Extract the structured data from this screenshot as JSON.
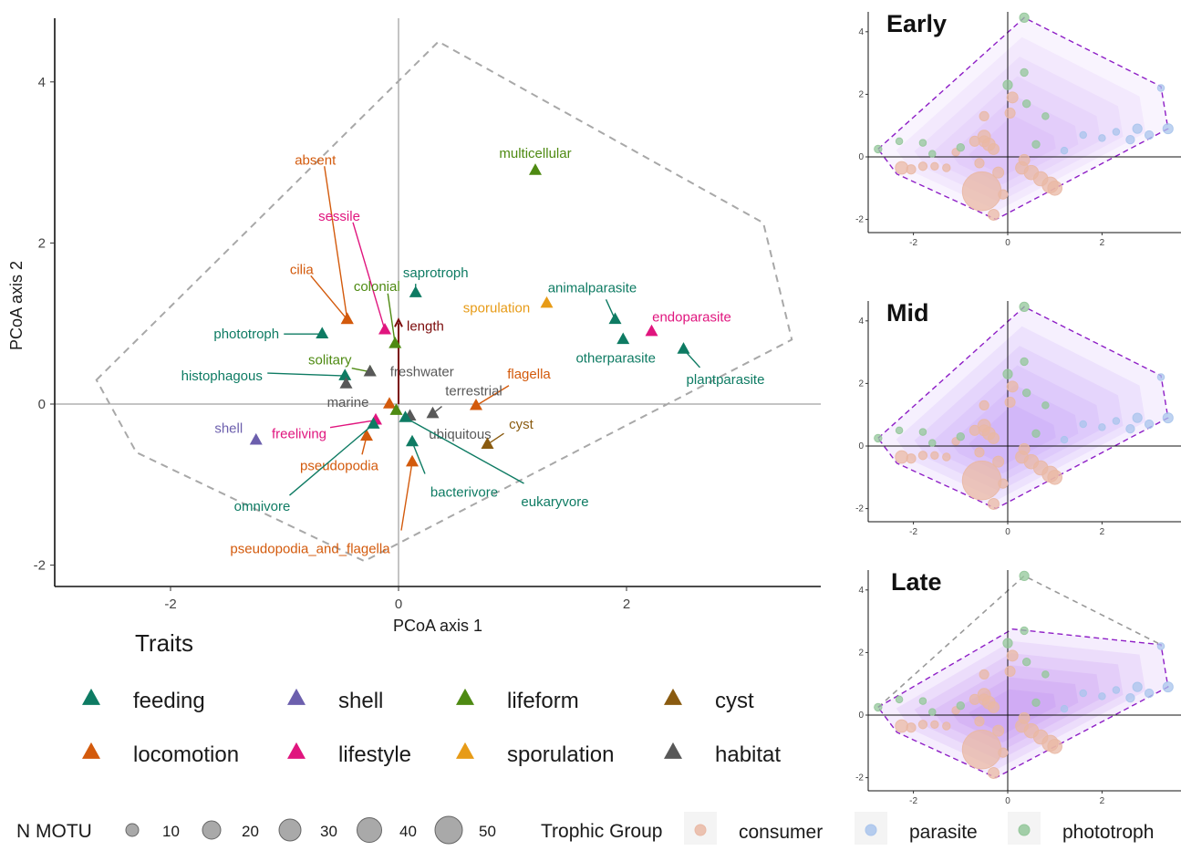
{
  "colors": {
    "feeding": "#0e7b63",
    "shell": "#6c5fad",
    "lifeform": "#4e8a12",
    "cyst": "#8a5b10",
    "locomotion": "#d35a0c",
    "lifestyle": "#e0157e",
    "sporulation": "#e79b17",
    "habitat": "#585858",
    "length": "#7b0a0a",
    "consumer": "#e9b8a4",
    "parasite": "#a9c4ec",
    "phototroph": "#93c79a",
    "hull_main": "#a8a8a8",
    "hull_panel": "#8e1fc6",
    "hull_fill": "#a35ff0"
  },
  "chart_data": [
    {
      "type": "scatter",
      "xlabel": "PCoA axis 1",
      "ylabel": "PCoA axis 2",
      "xlim": [
        -3.0,
        3.9
      ],
      "ylim": [
        -2.3,
        4.8
      ],
      "xticks": [
        -2,
        0,
        2
      ],
      "yticks": [
        -2,
        0,
        2,
        4
      ],
      "grid": false,
      "reference_lines": {
        "x": 0,
        "y": 0
      },
      "hull": [
        [
          -2.65,
          0.3
        ],
        [
          0.35,
          4.5
        ],
        [
          3.2,
          2.25
        ],
        [
          3.45,
          0.8
        ],
        [
          -0.3,
          -1.95
        ],
        [
          -2.3,
          -0.6
        ]
      ],
      "vector": {
        "label": "length",
        "x": 0,
        "y": 1.05
      },
      "points": [
        {
          "label": "multicellular",
          "group": "lifeform",
          "x": 1.2,
          "y": 2.9
        },
        {
          "label": "absent",
          "group": "locomotion",
          "x": -0.45,
          "y": 1.05
        },
        {
          "label": "sessile",
          "group": "lifestyle",
          "x": -0.12,
          "y": 0.92
        },
        {
          "label": "saprotroph",
          "group": "feeding",
          "x": 0.15,
          "y": 1.38
        },
        {
          "label": "cilia",
          "group": "locomotion",
          "x": -0.45,
          "y": 1.05
        },
        {
          "label": "colonial",
          "group": "lifeform",
          "x": -0.03,
          "y": 0.75
        },
        {
          "label": "sporulation",
          "group": "sporulation",
          "x": 1.3,
          "y": 1.25
        },
        {
          "label": "animalparasite",
          "group": "feeding",
          "x": 1.9,
          "y": 1.05
        },
        {
          "label": "endoparasite",
          "group": "lifestyle",
          "x": 2.22,
          "y": 0.9
        },
        {
          "label": "phototroph",
          "group": "feeding",
          "x": -0.67,
          "y": 0.87
        },
        {
          "label": "otherparasite",
          "group": "feeding",
          "x": 1.97,
          "y": 0.8
        },
        {
          "label": "plantparasite",
          "group": "feeding",
          "x": 2.5,
          "y": 0.68
        },
        {
          "label": "solitary",
          "group": "lifeform",
          "x": -0.25,
          "y": 0.4
        },
        {
          "label": "freshwater",
          "group": "habitat",
          "x": -0.25,
          "y": 0.4
        },
        {
          "label": "histophagous",
          "group": "feeding",
          "x": -0.47,
          "y": 0.35
        },
        {
          "label": "marine",
          "group": "habitat",
          "x": -0.46,
          "y": 0.25
        },
        {
          "label": "flagella",
          "group": "locomotion",
          "x": 0.68,
          "y": -0.02
        },
        {
          "label": "terrestrial",
          "group": "habitat",
          "x": 0.3,
          "y": -0.12
        },
        {
          "label": "ubiquitous",
          "group": "habitat",
          "x": 0.1,
          "y": -0.15
        },
        {
          "label": "cyst",
          "group": "cyst",
          "x": 0.78,
          "y": -0.5
        },
        {
          "label": "shell",
          "group": "shell",
          "x": -1.25,
          "y": -0.45
        },
        {
          "label": "freeliving",
          "group": "lifestyle",
          "x": -0.2,
          "y": -0.2
        },
        {
          "label": "pseudopodia",
          "group": "locomotion",
          "x": -0.28,
          "y": -0.4
        },
        {
          "label": "omnivore",
          "group": "feeding",
          "x": -0.22,
          "y": -0.25
        },
        {
          "label": "bacterivore",
          "group": "feeding",
          "x": 0.12,
          "y": -0.47
        },
        {
          "label": "eukaryvore",
          "group": "feeding",
          "x": 0.06,
          "y": -0.17
        },
        {
          "label": "pseudopodia_and_flagella",
          "group": "locomotion",
          "x": 0.12,
          "y": -0.72
        },
        {
          "label": "",
          "group": "locomotion",
          "x": -0.08,
          "y": 0.0
        },
        {
          "label": "",
          "group": "lifeform",
          "x": -0.02,
          "y": -0.08
        }
      ]
    },
    {
      "type": "scatter",
      "title": "Early",
      "xlim": [
        -3.0,
        3.6
      ],
      "ylim": [
        -2.3,
        4.6
      ],
      "xticks": [
        -2,
        0,
        2
      ],
      "yticks": [
        -2,
        0,
        2,
        4
      ],
      "hull": [
        [
          -2.75,
          0.25
        ],
        [
          0.35,
          4.45
        ],
        [
          3.25,
          2.25
        ],
        [
          3.4,
          0.9
        ],
        [
          -0.25,
          -2.0
        ],
        [
          -2.35,
          -0.55
        ]
      ]
    },
    {
      "type": "scatter",
      "title": "Mid",
      "xlim": [
        -3.0,
        3.6
      ],
      "ylim": [
        -2.3,
        4.6
      ],
      "xticks": [
        -2,
        0,
        2
      ],
      "yticks": [
        -2,
        0,
        2,
        4
      ],
      "hull": [
        [
          -2.75,
          0.25
        ],
        [
          0.35,
          4.45
        ],
        [
          3.25,
          2.25
        ],
        [
          3.4,
          0.9
        ],
        [
          -0.25,
          -2.0
        ],
        [
          -2.35,
          -0.55
        ]
      ]
    },
    {
      "type": "scatter",
      "title": "Late",
      "xlim": [
        -3.0,
        3.6
      ],
      "ylim": [
        -2.3,
        4.6
      ],
      "xticks": [
        -2,
        0,
        2
      ],
      "yticks": [
        -2,
        0,
        2,
        4
      ],
      "hull": [
        [
          -2.75,
          0.25
        ],
        [
          0.1,
          2.75
        ],
        [
          3.25,
          2.25
        ],
        [
          3.4,
          0.9
        ],
        [
          -0.25,
          -2.0
        ],
        [
          -2.35,
          -0.55
        ]
      ],
      "reference_hull": [
        [
          -2.75,
          0.25
        ],
        [
          0.35,
          4.45
        ],
        [
          3.25,
          2.25
        ]
      ]
    }
  ],
  "motu_points": [
    [
      -2.75,
      0.25,
      6,
      "phototroph"
    ],
    [
      -2.3,
      0.5,
      5,
      "phototroph"
    ],
    [
      -1.8,
      0.45,
      5,
      "phototroph"
    ],
    [
      -2.25,
      -0.35,
      12,
      "consumer"
    ],
    [
      -2.05,
      -0.4,
      8,
      "consumer"
    ],
    [
      -1.8,
      -0.3,
      7,
      "consumer"
    ],
    [
      -1.55,
      -0.3,
      6,
      "consumer"
    ],
    [
      -1.3,
      -0.35,
      6,
      "consumer"
    ],
    [
      -1.1,
      0.15,
      6,
      "consumer"
    ],
    [
      -1.6,
      0.1,
      5,
      "phototroph"
    ],
    [
      -0.5,
      1.3,
      8,
      "consumer"
    ],
    [
      -0.5,
      0.65,
      12,
      "consumer"
    ],
    [
      -0.5,
      0.5,
      10,
      "consumer"
    ],
    [
      -0.4,
      0.4,
      12,
      "consumer"
    ],
    [
      -0.7,
      0.5,
      9,
      "consumer"
    ],
    [
      -0.3,
      0.25,
      10,
      "consumer"
    ],
    [
      -0.6,
      -0.2,
      8,
      "consumer"
    ],
    [
      -0.2,
      -0.5,
      10,
      "consumer"
    ],
    [
      -0.55,
      -1.1,
      44,
      "consumer"
    ],
    [
      -0.3,
      -1.85,
      10,
      "consumer"
    ],
    [
      -0.1,
      -1.2,
      8,
      "consumer"
    ],
    [
      0.3,
      -0.35,
      12,
      "consumer"
    ],
    [
      0.5,
      -0.5,
      14,
      "consumer"
    ],
    [
      0.7,
      -0.7,
      14,
      "consumer"
    ],
    [
      0.9,
      -0.9,
      16,
      "consumer"
    ],
    [
      1.0,
      -1.0,
      14,
      "consumer"
    ],
    [
      0.35,
      -0.1,
      10,
      "consumer"
    ],
    [
      0.1,
      1.9,
      10,
      "consumer"
    ],
    [
      0.05,
      1.4,
      9,
      "consumer"
    ],
    [
      0.0,
      2.3,
      8,
      "phototroph"
    ],
    [
      0.35,
      4.45,
      8,
      "phototroph"
    ],
    [
      0.35,
      2.7,
      6,
      "phototroph"
    ],
    [
      0.4,
      1.7,
      6,
      "phototroph"
    ],
    [
      0.8,
      1.3,
      5,
      "phototroph"
    ],
    [
      0.6,
      0.4,
      6,
      "phototroph"
    ],
    [
      -1.0,
      0.3,
      6,
      "phototroph"
    ],
    [
      1.6,
      0.7,
      5,
      "parasite"
    ],
    [
      2.0,
      0.6,
      5,
      "parasite"
    ],
    [
      2.3,
      0.8,
      5,
      "parasite"
    ],
    [
      2.6,
      0.55,
      7,
      "parasite"
    ],
    [
      2.75,
      0.9,
      8,
      "parasite"
    ],
    [
      3.0,
      0.7,
      7,
      "parasite"
    ],
    [
      3.4,
      0.9,
      9,
      "parasite"
    ],
    [
      3.25,
      2.2,
      5,
      "parasite"
    ],
    [
      1.2,
      0.2,
      5,
      "parasite"
    ]
  ],
  "traits_legend": {
    "title": "Traits",
    "items": [
      {
        "label": "feeding",
        "group": "feeding"
      },
      {
        "label": "shell",
        "group": "shell"
      },
      {
        "label": "lifeform",
        "group": "lifeform"
      },
      {
        "label": "cyst",
        "group": "cyst"
      },
      {
        "label": "locomotion",
        "group": "locomotion"
      },
      {
        "label": "lifestyle",
        "group": "lifestyle"
      },
      {
        "label": "sporulation",
        "group": "sporulation"
      },
      {
        "label": "habitat",
        "group": "habitat"
      }
    ]
  },
  "size_legend": {
    "title": "N MOTU",
    "items": [
      {
        "label": "10",
        "value": 10
      },
      {
        "label": "20",
        "value": 20
      },
      {
        "label": "30",
        "value": 30
      },
      {
        "label": "40",
        "value": 40
      },
      {
        "label": "50",
        "value": 50
      }
    ]
  },
  "trophic_legend": {
    "title": "Trophic Group",
    "items": [
      {
        "label": "consumer",
        "group": "consumer"
      },
      {
        "label": "parasite",
        "group": "parasite"
      },
      {
        "label": "phototroph",
        "group": "phototroph"
      }
    ]
  }
}
